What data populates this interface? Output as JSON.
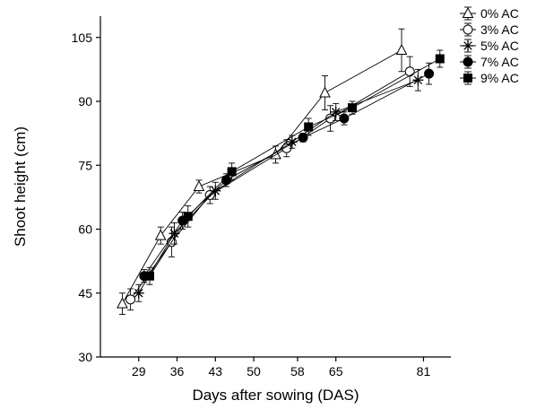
{
  "chart_data": {
    "type": "line",
    "xlabel": "Days after sowing (DAS)",
    "ylabel": "Shoot height (cm)",
    "xlim": [
      22,
      86
    ],
    "ylim": [
      30,
      110
    ],
    "xticks": [
      29,
      36,
      43,
      50,
      58,
      65,
      81
    ],
    "yticks": [
      30,
      45,
      60,
      75,
      90,
      105
    ],
    "legend_position": "top-right",
    "grid": false,
    "series": [
      {
        "name": "0% AC",
        "marker": "triangle-open",
        "x": [
          26,
          33,
          40,
          54,
          63,
          77
        ],
        "y": [
          42.5,
          58.5,
          70,
          77.5,
          92,
          102
        ],
        "err": [
          2.5,
          2,
          1.5,
          2,
          4,
          5
        ]
      },
      {
        "name": "3% AC",
        "marker": "circle-open",
        "x": [
          27.5,
          35,
          42,
          56,
          64,
          78.5
        ],
        "y": [
          43.5,
          57,
          68,
          79,
          86,
          97
        ],
        "err": [
          2.5,
          3.5,
          2,
          2,
          3,
          3.5
        ]
      },
      {
        "name": "5% AC",
        "marker": "asterisk",
        "x": [
          29,
          35.5,
          43,
          57,
          65,
          80
        ],
        "y": [
          45,
          59,
          69,
          80.5,
          87.5,
          95
        ],
        "err": [
          2,
          2.5,
          2,
          1.5,
          2,
          2.5
        ]
      },
      {
        "name": "7% AC",
        "marker": "circle-filled",
        "x": [
          30,
          37,
          45,
          59,
          66.5,
          82
        ],
        "y": [
          49,
          62,
          71.5,
          81.5,
          86,
          96.5
        ],
        "err": [
          1.5,
          2,
          1.5,
          1,
          1.5,
          2.5
        ]
      },
      {
        "name": "9% AC",
        "marker": "square-filled",
        "x": [
          31,
          38,
          46,
          60,
          68,
          84
        ],
        "y": [
          49,
          63,
          73.5,
          84,
          88.5,
          100
        ],
        "err": [
          2,
          2.5,
          2,
          2,
          1.5,
          2
        ]
      }
    ]
  }
}
